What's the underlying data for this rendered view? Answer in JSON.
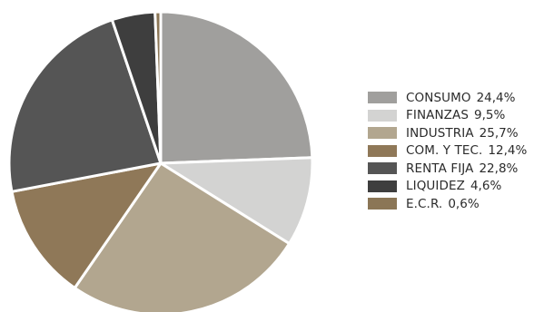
{
  "chart_data": {
    "type": "pie",
    "title": "",
    "slices": [
      {
        "label": "CONSUMO",
        "value": 24.4,
        "value_label": "24,4%",
        "color": "#a09f9d"
      },
      {
        "label": "FINANZAS",
        "value": 9.5,
        "value_label": "9,5%",
        "color": "#d3d3d2"
      },
      {
        "label": "INDUSTRIA",
        "value": 25.7,
        "value_label": "25,7%",
        "color": "#b2a68f"
      },
      {
        "label": "COM. Y TEC.",
        "value": 12.4,
        "value_label": "12,4%",
        "color": "#8f7858"
      },
      {
        "label": "RENTA FIJA",
        "value": 22.8,
        "value_label": "22,8%",
        "color": "#555555"
      },
      {
        "label": "LIQUIDEZ",
        "value": 4.6,
        "value_label": "4,6%",
        "color": "#3e3e3e"
      },
      {
        "label": "E.C.R.",
        "value": 0.6,
        "value_label": "0,6%",
        "color": "#8b7656"
      }
    ],
    "legend_position": "right",
    "start_angle": "top",
    "direction": "clockwise"
  }
}
